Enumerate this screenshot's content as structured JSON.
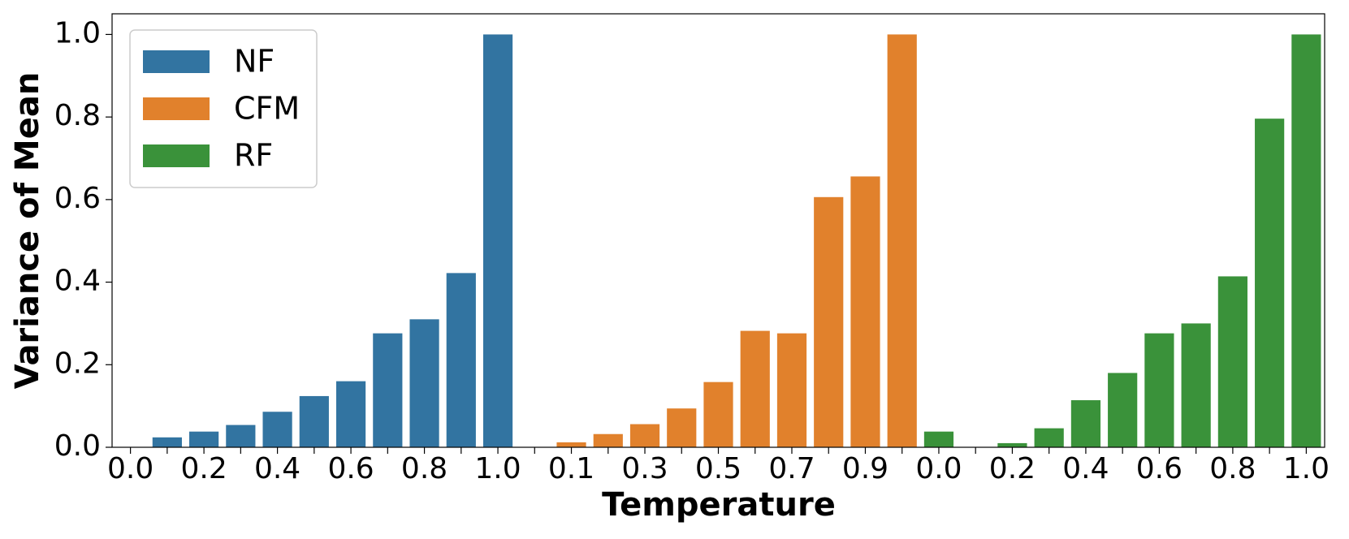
{
  "chart_data": {
    "type": "bar",
    "xlabel": "Temperature",
    "ylabel": "Variance of Mean",
    "categories": [
      "0.0",
      null,
      "0.2",
      null,
      "0.4",
      null,
      "0.6",
      null,
      "0.8",
      null,
      "1.0",
      null,
      "0.1",
      null,
      "0.3",
      null,
      "0.5",
      null,
      "0.7",
      null,
      "0.9",
      null,
      "0.0",
      null,
      "0.2",
      null,
      "0.4",
      null,
      "0.6",
      null,
      "0.8",
      null,
      "1.0"
    ],
    "series": [
      {
        "name": "NF",
        "color": "#3274a1",
        "values": [
          0,
          0.024,
          0.038,
          0.054,
          0.086,
          0.124,
          0.16,
          0.276,
          0.31,
          0.422,
          1.0,
          null,
          null,
          null,
          null,
          null,
          null,
          null,
          null,
          null,
          null,
          null,
          null,
          null,
          null,
          null,
          null,
          null,
          null,
          null,
          null,
          null,
          null
        ]
      },
      {
        "name": "CFM",
        "color": "#e1812c",
        "values": [
          null,
          null,
          null,
          null,
          null,
          null,
          null,
          null,
          null,
          null,
          null,
          0,
          0.012,
          0.032,
          0.056,
          0.094,
          0.158,
          0.282,
          0.276,
          0.606,
          0.656,
          1.0,
          null,
          null,
          null,
          null,
          null,
          null,
          null,
          null,
          null,
          null,
          null
        ]
      },
      {
        "name": "RF",
        "color": "#3a923a",
        "values": [
          null,
          null,
          null,
          null,
          null,
          null,
          null,
          null,
          null,
          null,
          null,
          null,
          null,
          null,
          null,
          null,
          null,
          null,
          null,
          null,
          null,
          null,
          0.038,
          0,
          0.01,
          0.046,
          0.114,
          0.18,
          0.276,
          0.3,
          0.414,
          0.796,
          1.0
        ]
      }
    ],
    "ylim": [
      0,
      1.05
    ],
    "yticks": [
      {
        "value": 0,
        "label": "0.0"
      },
      0.2,
      0.4,
      0.6,
      0.8,
      {
        "value": 1,
        "label": "1.0"
      }
    ],
    "legend": "upper left",
    "grid": false
  }
}
